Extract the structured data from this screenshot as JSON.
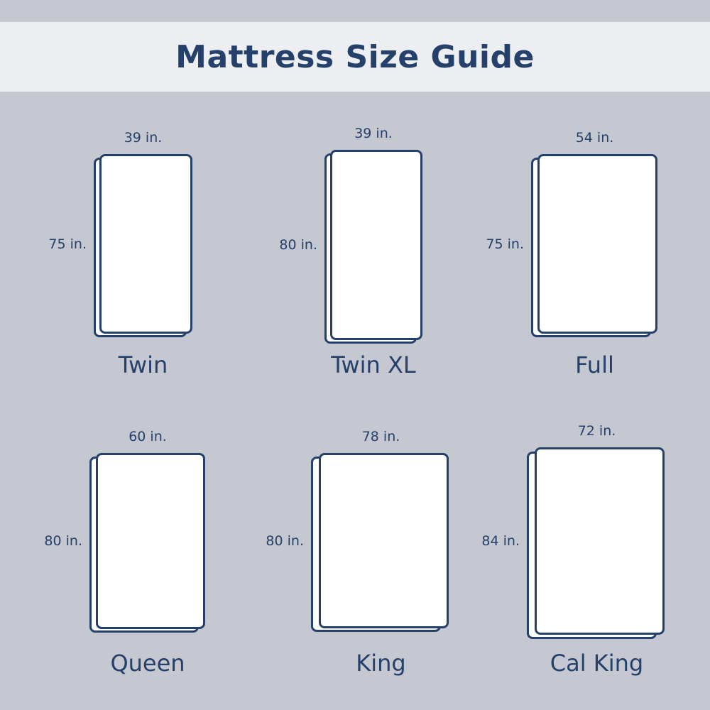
{
  "title": "Mattress Size Guide",
  "colors": {
    "background": "#c5c8d0",
    "banner": "#edeef1",
    "accent": "#24406b",
    "mattress_fill": "#ffffff"
  },
  "mattresses": [
    {
      "name": "Twin",
      "width": "39 in.",
      "length": "75 in."
    },
    {
      "name": "Twin XL",
      "width": "39 in.",
      "length": "80 in."
    },
    {
      "name": "Full",
      "width": "54 in.",
      "length": "75 in."
    },
    {
      "name": "Queen",
      "width": "60 in.",
      "length": "80 in."
    },
    {
      "name": "King",
      "width": "78 in.",
      "length": "80 in."
    },
    {
      "name": "Cal King",
      "width": "72 in.",
      "length": "84 in."
    }
  ]
}
